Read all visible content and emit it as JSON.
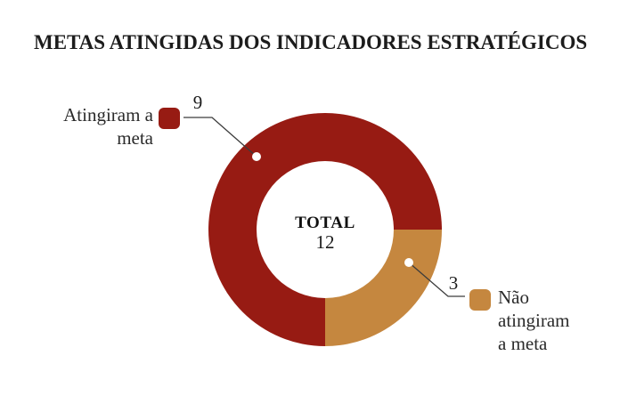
{
  "title": "METAS ATINGIDAS DOS INDICADORES ESTRATÉGICOS",
  "colors": {
    "achieved": "#971B13",
    "not_achieved": "#C5873F",
    "leader_line": "#3C3C3C",
    "callout_dot": "#FFFFFF",
    "text": "#1C1C1C",
    "background": "#FFFFFF"
  },
  "chart_data": {
    "type": "pie",
    "subtype": "donut",
    "title": "METAS ATINGIDAS DOS INDICADORES ESTRATÉGICOS",
    "center_label": "TOTAL",
    "total": 12,
    "segments": [
      {
        "label": "Atingiram a meta",
        "value": 9,
        "color": "#971B13"
      },
      {
        "label": "Não atingiram a meta",
        "value": 3,
        "color": "#C5873F"
      }
    ],
    "legend_position": "callouts-left-right",
    "grid": false
  },
  "legend_left": {
    "lines": [
      "Atingiram a",
      "meta"
    ]
  },
  "legend_right": {
    "lines": [
      "Não",
      "atingiram",
      "a meta"
    ]
  }
}
